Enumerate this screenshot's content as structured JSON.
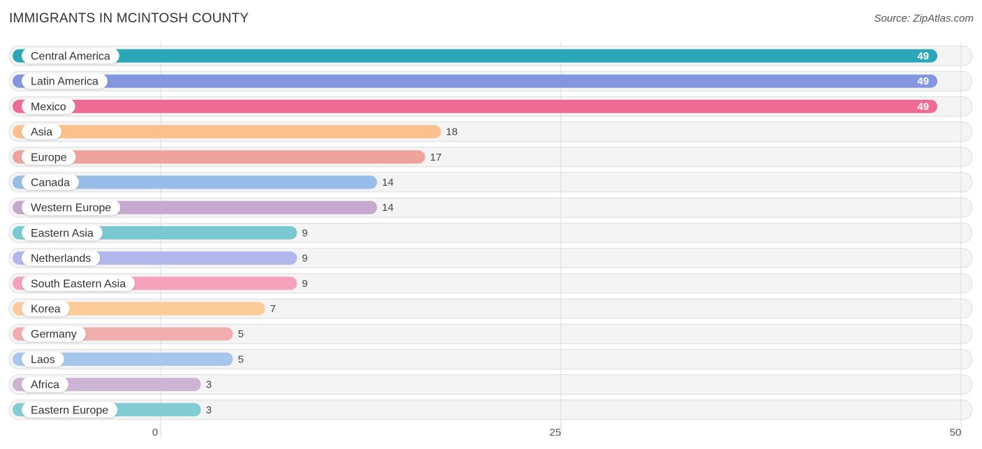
{
  "header": {
    "title": "IMMIGRANTS IN MCINTOSH COUNTY",
    "source": "Source: ZipAtlas.com"
  },
  "chart_data": {
    "type": "bar",
    "orientation": "horizontal",
    "title": "IMMIGRANTS IN MCINTOSH COUNTY",
    "categories": [
      "Central America",
      "Latin America",
      "Mexico",
      "Asia",
      "Europe",
      "Canada",
      "Western Europe",
      "Eastern Asia",
      "Netherlands",
      "South Eastern Asia",
      "Korea",
      "Germany",
      "Laos",
      "Africa",
      "Eastern Europe"
    ],
    "values": [
      49,
      49,
      49,
      18,
      17,
      14,
      14,
      9,
      9,
      9,
      7,
      5,
      5,
      3,
      3
    ],
    "colors": [
      "#2aa8b8",
      "#8596e0",
      "#f06b94",
      "#fbc08c",
      "#eea49c",
      "#98bde9",
      "#c7a8cf",
      "#7ac8d1",
      "#b2b8ec",
      "#f5a2bd",
      "#fccb99",
      "#f0aeaf",
      "#a7c6ec",
      "#cdb3d4",
      "#82ccd6"
    ],
    "xlim": [
      0,
      50
    ],
    "xticks": [
      0,
      25,
      50
    ],
    "xlabel": "",
    "ylabel": "",
    "grid": true,
    "legend": "none"
  }
}
